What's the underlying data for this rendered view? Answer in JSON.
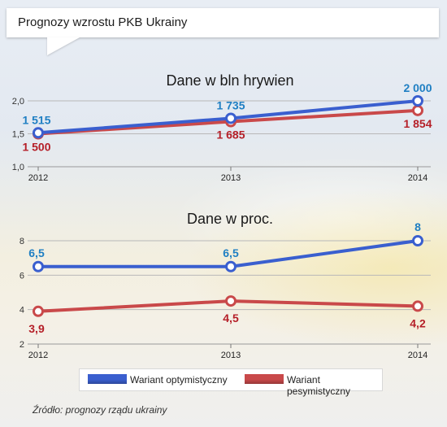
{
  "header": {
    "title": "Prognozy wzrostu PKB Ukrainy"
  },
  "source": "Źródło: prognozy rządu ukrainy",
  "legend": {
    "items": [
      {
        "label": "Wariant optymistyczny",
        "color": "#3a5fcf"
      },
      {
        "label": "Wariant pesymistyczny",
        "color": "#c9494a"
      }
    ]
  },
  "colors": {
    "optimistic": "#3a5fcf",
    "pessimistic": "#c9494a",
    "optimistic_label": "#1f7fc3",
    "pessimistic_label": "#b51f28"
  },
  "chart_data": [
    {
      "type": "line",
      "title": "Dane w bln hrywien",
      "categories": [
        "2012",
        "2013",
        "2014"
      ],
      "yticks": [
        "1,0",
        "1,5",
        "2,0"
      ],
      "ylim": [
        1.0,
        2.0
      ],
      "grid": true,
      "series": [
        {
          "name": "Wariant optymistyczny",
          "values": [
            1.515,
            1.735,
            2.0
          ],
          "labels": [
            "1 515",
            "1 735",
            "2 000"
          ]
        },
        {
          "name": "Wariant pesymistyczny",
          "values": [
            1.5,
            1.685,
            1.854
          ],
          "labels": [
            "1 500",
            "1 685",
            "1 854"
          ]
        }
      ]
    },
    {
      "type": "line",
      "title": "Dane w proc.",
      "categories": [
        "2012",
        "2013",
        "2014"
      ],
      "yticks": [
        "2",
        "4",
        "6",
        "8"
      ],
      "ylim": [
        2,
        8
      ],
      "grid": true,
      "series": [
        {
          "name": "Wariant optymistyczny",
          "values": [
            6.5,
            6.5,
            8
          ],
          "labels": [
            "6,5",
            "6,5",
            "8"
          ]
        },
        {
          "name": "Wariant pesymistyczny",
          "values": [
            3.9,
            4.5,
            4.2
          ],
          "labels": [
            "3,9",
            "4,5",
            "4,2"
          ]
        }
      ]
    }
  ]
}
